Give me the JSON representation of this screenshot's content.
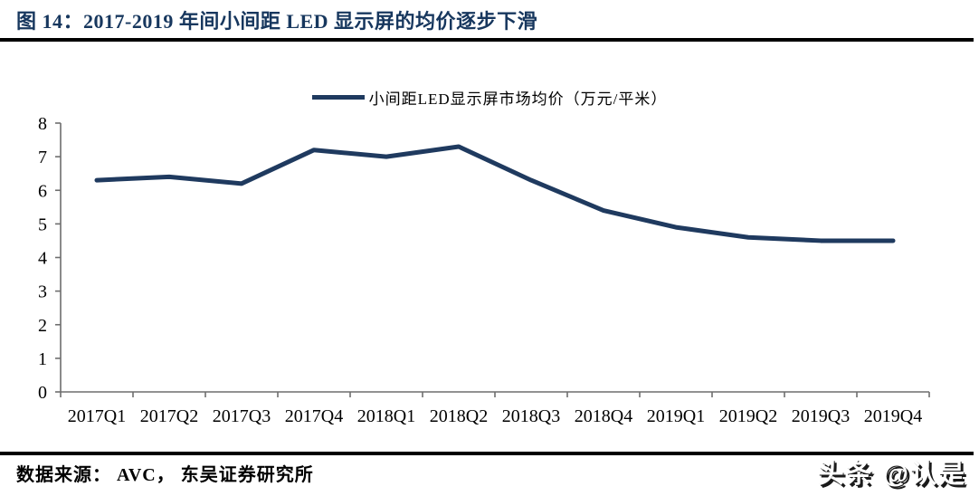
{
  "page": {
    "title": "图 14：2017-2019 年间小间距 LED 显示屏的均价逐步下滑"
  },
  "legend": {
    "label": "小间距LED显示屏市场均价（万元/平米）"
  },
  "footer": {
    "source": "数据来源： AVC， 东吴证券研究所",
    "watermark": "头条 @认是"
  },
  "colors": {
    "title": "#17375E",
    "line": "#1F3A5F",
    "axis": "#6e6e6e",
    "tick_text": "#000000",
    "rule": "#000000"
  },
  "chart_data": {
    "type": "line",
    "categories": [
      "2017Q1",
      "2017Q2",
      "2017Q3",
      "2017Q4",
      "2018Q1",
      "2018Q2",
      "2018Q3",
      "2018Q4",
      "2019Q1",
      "2019Q2",
      "2019Q3",
      "2019Q4"
    ],
    "series": [
      {
        "name": "小间距LED显示屏市场均价（万元/平米）",
        "values": [
          6.3,
          6.4,
          6.2,
          7.2,
          7.0,
          7.3,
          6.3,
          5.4,
          4.9,
          4.6,
          4.5,
          4.5
        ]
      }
    ],
    "title": "",
    "xlabel": "",
    "ylabel": "",
    "ylim": [
      0,
      8
    ],
    "yticks": [
      0,
      1,
      2,
      3,
      4,
      5,
      6,
      7,
      8
    ],
    "grid": false,
    "legend_position": "top-center"
  }
}
